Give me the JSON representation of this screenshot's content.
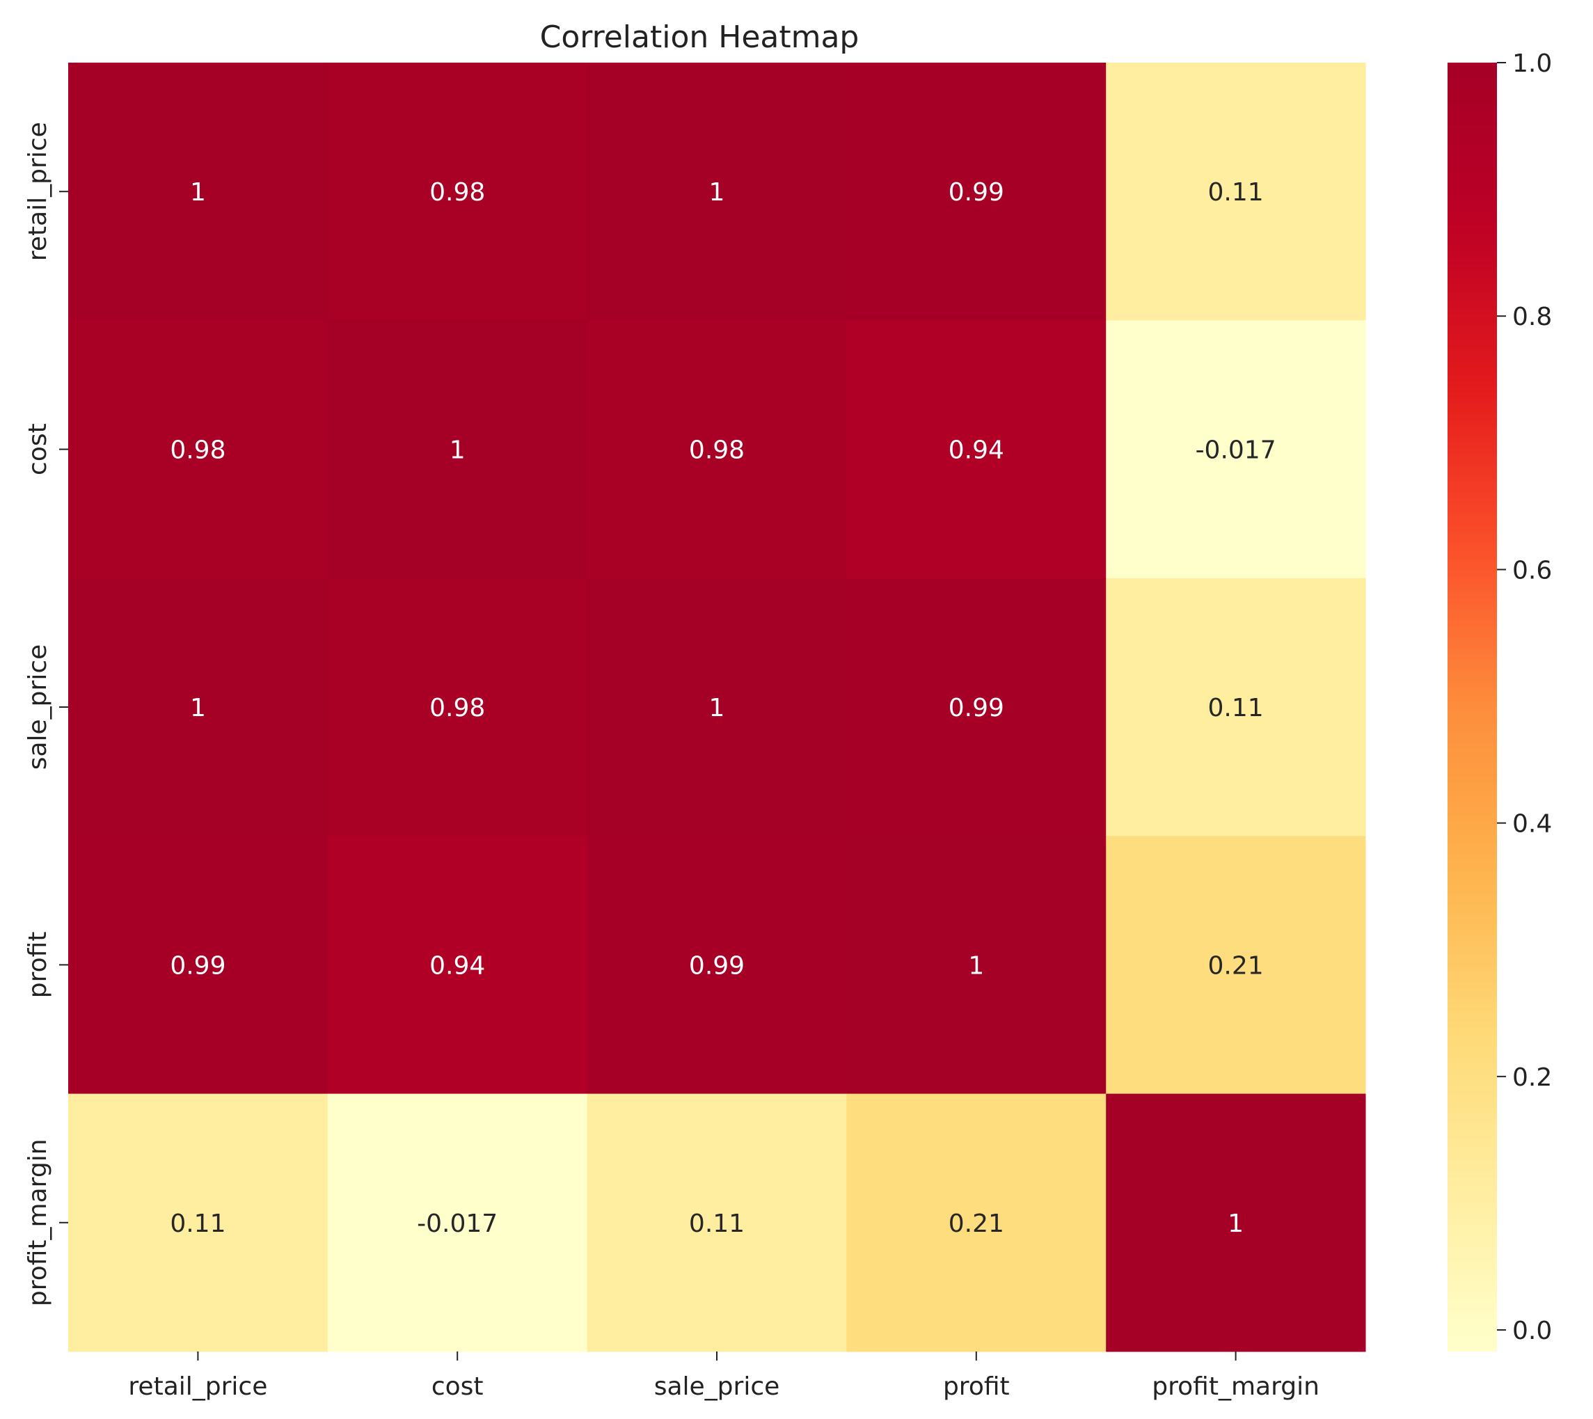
{
  "chart_data": {
    "type": "heatmap",
    "title": "Correlation Heatmap",
    "xlabel": "",
    "ylabel": "",
    "x_categories": [
      "retail_price",
      "cost",
      "sale_price",
      "profit",
      "profit_margin"
    ],
    "y_categories": [
      "retail_price",
      "cost",
      "sale_price",
      "profit",
      "profit_margin"
    ],
    "values": [
      [
        1.0,
        0.98,
        1.0,
        0.99,
        0.11
      ],
      [
        0.98,
        1.0,
        0.98,
        0.94,
        -0.017
      ],
      [
        1.0,
        0.98,
        1.0,
        0.99,
        0.11
      ],
      [
        0.99,
        0.94,
        0.99,
        1.0,
        0.21
      ],
      [
        0.11,
        -0.017,
        0.11,
        0.21,
        1.0
      ]
    ],
    "labels": [
      [
        "1",
        "0.98",
        "1",
        "0.99",
        "0.11"
      ],
      [
        "0.98",
        "1",
        "0.98",
        "0.94",
        "-0.017"
      ],
      [
        "1",
        "0.98",
        "1",
        "0.99",
        "0.11"
      ],
      [
        "0.99",
        "0.94",
        "0.99",
        "1",
        "0.21"
      ],
      [
        "0.11",
        "-0.017",
        "0.11",
        "0.21",
        "1"
      ]
    ],
    "colormap": "YlOrRd",
    "colorbar": {
      "range": [
        -0.017,
        1.0
      ],
      "ticks": [
        0.0,
        0.2,
        0.4,
        0.6,
        0.8,
        1.0
      ],
      "tick_labels": [
        "0.0",
        "0.2",
        "0.4",
        "0.6",
        "0.8",
        "1.0"
      ]
    },
    "grid": false,
    "legend": "colorbar-right"
  }
}
